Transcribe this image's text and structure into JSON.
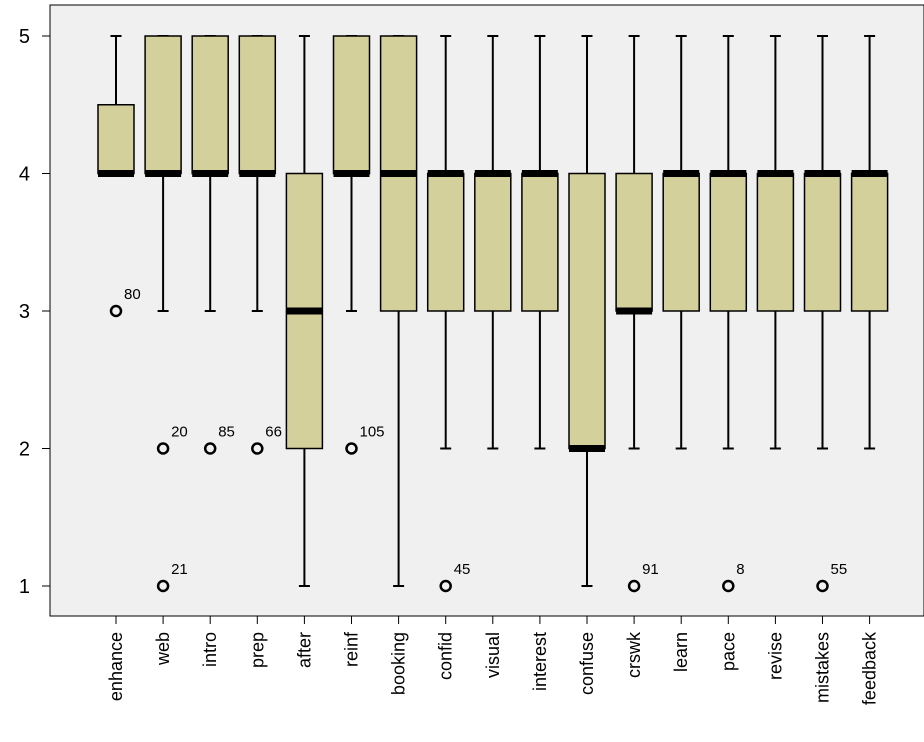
{
  "chart_data": {
    "type": "boxplot",
    "title": "",
    "xlabel": "",
    "ylabel": "",
    "ylim": [
      0.8,
      5.2
    ],
    "yticks": [
      "1",
      "2",
      "3",
      "4",
      "5"
    ],
    "grid": false,
    "legend": "none",
    "colors": {
      "plot_background": "#f0f0f0",
      "box_fill": "#d4d09c",
      "line": "#000000"
    },
    "categories": [
      "enhance",
      "web",
      "intro",
      "prep",
      "after",
      "reinf",
      "booking",
      "confid",
      "visual",
      "interest",
      "confuse",
      "crswk",
      "learn",
      "pace",
      "revise",
      "mistakes",
      "feedback"
    ],
    "boxes": [
      {
        "whisker_low": 4,
        "q1": 4,
        "median": 4,
        "q3": 4.5,
        "whisker_high": 5,
        "outliers": [
          {
            "value": 3,
            "label": "80"
          }
        ]
      },
      {
        "whisker_low": 3,
        "q1": 4,
        "median": 4,
        "q3": 5,
        "whisker_high": 5,
        "outliers": [
          {
            "value": 2,
            "label": "20"
          },
          {
            "value": 1,
            "label": "21"
          }
        ]
      },
      {
        "whisker_low": 3,
        "q1": 4,
        "median": 4,
        "q3": 5,
        "whisker_high": 5,
        "outliers": [
          {
            "value": 2,
            "label": "85"
          }
        ]
      },
      {
        "whisker_low": 3,
        "q1": 4,
        "median": 4,
        "q3": 5,
        "whisker_high": 5,
        "outliers": [
          {
            "value": 2,
            "label": "66"
          }
        ]
      },
      {
        "whisker_low": 1,
        "q1": 2,
        "median": 3,
        "q3": 4,
        "whisker_high": 5,
        "outliers": []
      },
      {
        "whisker_low": 3,
        "q1": 4,
        "median": 4,
        "q3": 5,
        "whisker_high": 5,
        "outliers": [
          {
            "value": 2,
            "label": "105"
          }
        ]
      },
      {
        "whisker_low": 1,
        "q1": 3,
        "median": 4,
        "q3": 5,
        "whisker_high": 5,
        "outliers": []
      },
      {
        "whisker_low": 2,
        "q1": 3,
        "median": 4,
        "q3": 4,
        "whisker_high": 5,
        "outliers": [
          {
            "value": 1,
            "label": "45"
          }
        ]
      },
      {
        "whisker_low": 2,
        "q1": 3,
        "median": 4,
        "q3": 4,
        "whisker_high": 5,
        "outliers": []
      },
      {
        "whisker_low": 2,
        "q1": 3,
        "median": 4,
        "q3": 4,
        "whisker_high": 5,
        "outliers": []
      },
      {
        "whisker_low": 1,
        "q1": 2,
        "median": 2,
        "q3": 4,
        "whisker_high": 5,
        "outliers": []
      },
      {
        "whisker_low": 2,
        "q1": 3,
        "median": 3,
        "q3": 4,
        "whisker_high": 5,
        "outliers": [
          {
            "value": 1,
            "label": "91"
          }
        ]
      },
      {
        "whisker_low": 2,
        "q1": 3,
        "median": 4,
        "q3": 4,
        "whisker_high": 5,
        "outliers": []
      },
      {
        "whisker_low": 2,
        "q1": 3,
        "median": 4,
        "q3": 4,
        "whisker_high": 5,
        "outliers": [
          {
            "value": 1,
            "label": "8"
          }
        ]
      },
      {
        "whisker_low": 2,
        "q1": 3,
        "median": 4,
        "q3": 4,
        "whisker_high": 5,
        "outliers": []
      },
      {
        "whisker_low": 2,
        "q1": 3,
        "median": 4,
        "q3": 4,
        "whisker_high": 5,
        "outliers": [
          {
            "value": 1,
            "label": "55"
          }
        ]
      },
      {
        "whisker_low": 2,
        "q1": 3,
        "median": 4,
        "q3": 4,
        "whisker_high": 5,
        "outliers": []
      }
    ]
  }
}
